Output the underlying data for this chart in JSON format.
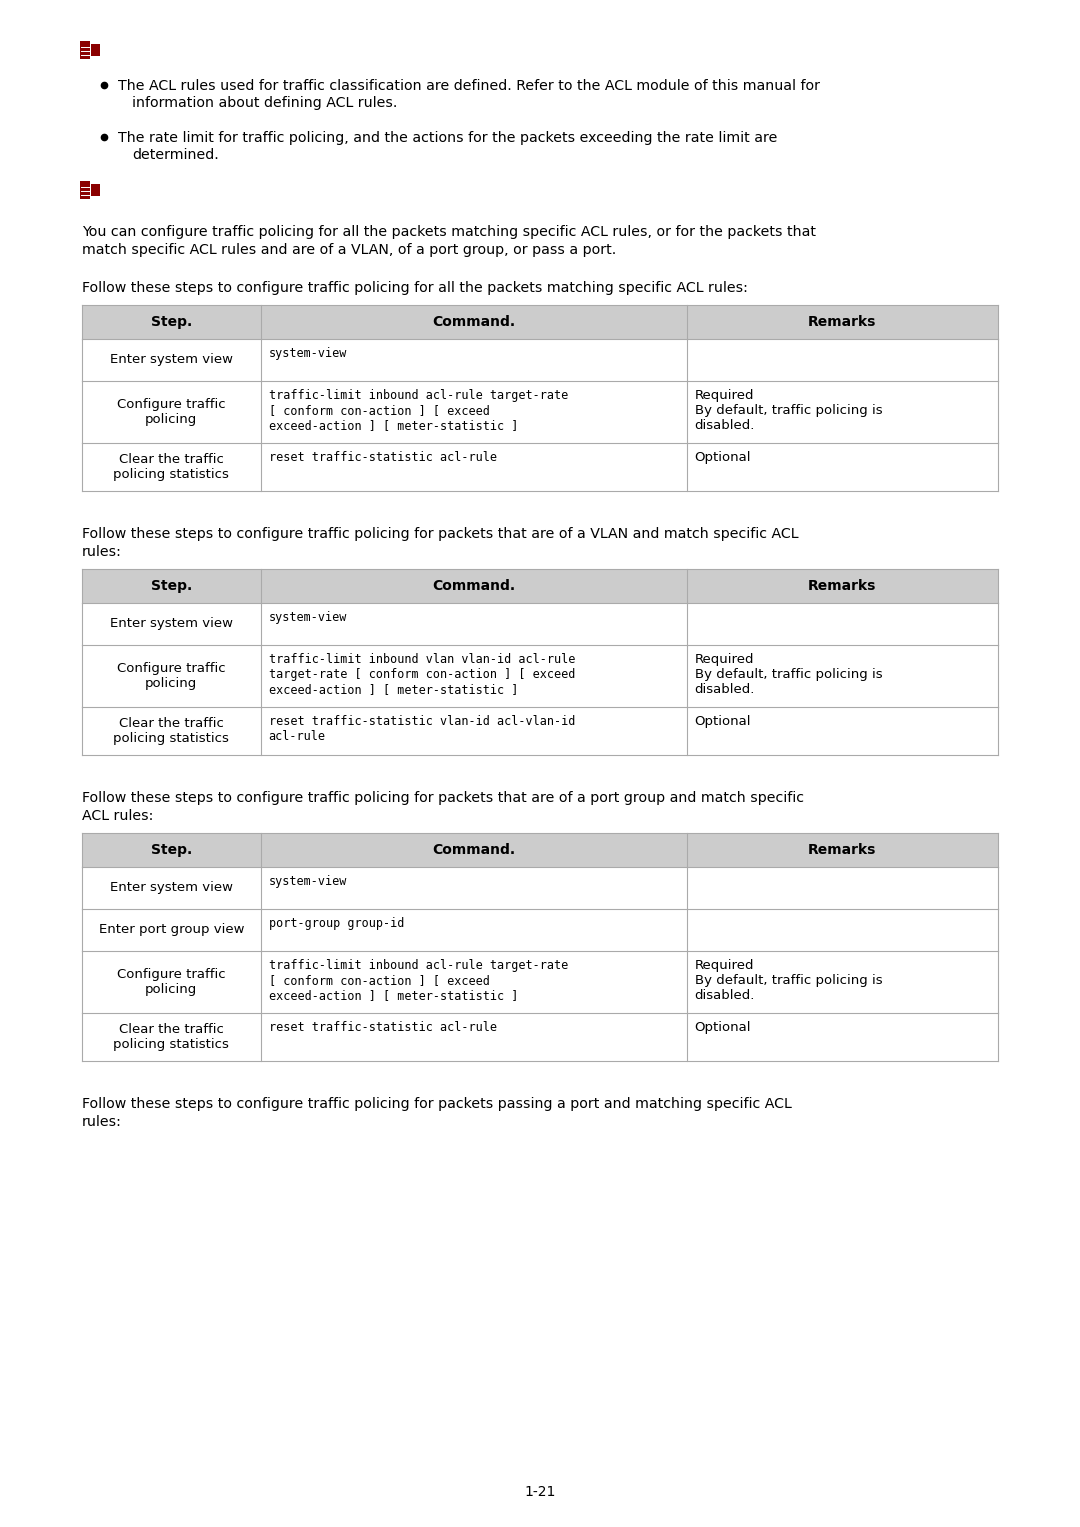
{
  "bg_color": "#ffffff",
  "text_color": "#000000",
  "header_bg": "#cccccc",
  "icon_color": "#8b0000",
  "page_number": "1-21",
  "bullet1_line1": "The ACL rules used for traffic classification are defined. Refer to the ACL module of this manual for",
  "bullet1_line2": "information about defining ACL rules.",
  "bullet2_line1": "The rate limit for traffic policing, and the actions for the packets exceeding the rate limit are",
  "bullet2_line2": "determined.",
  "para2_line1": "You can configure traffic policing for all the packets matching specific ACL rules, or for the packets that",
  "para2_line2": "match specific ACL rules and are of a VLAN, of a port group, or pass a port.",
  "table1_title": "Follow these steps to configure traffic policing for all the packets matching specific ACL rules:",
  "table1_headers": [
    "Step.",
    "Command.",
    "Remarks"
  ],
  "table1_rows": [
    [
      "Enter system view",
      "system-view",
      ""
    ],
    [
      "Configure traffic\npolicing",
      "traffic-limit inbound acl-rule target-rate\n[ conform con-action ] [ exceed\nexceed-action ] [ meter-statistic ]",
      "Required\nBy default, traffic policing is\ndisabled."
    ],
    [
      "Clear the traffic\npolicing statistics",
      "reset traffic-statistic acl-rule",
      "Optional"
    ]
  ],
  "table2_title_line1": "Follow these steps to configure traffic policing for packets that are of a VLAN and match specific ACL",
  "table2_title_line2": "rules:",
  "table2_headers": [
    "Step.",
    "Command.",
    "Remarks"
  ],
  "table2_rows": [
    [
      "Enter system view",
      "system-view",
      ""
    ],
    [
      "Configure traffic\npolicing",
      "traffic-limit inbound vlan vlan-id acl-rule\ntarget-rate [ conform con-action ] [ exceed\nexceed-action ] [ meter-statistic ]",
      "Required\nBy default, traffic policing is\ndisabled."
    ],
    [
      "Clear the traffic\npolicing statistics",
      "reset traffic-statistic vlan-id acl-vlan-id\nacl-rule",
      "Optional"
    ]
  ],
  "table3_title_line1": "Follow these steps to configure traffic policing for packets that are of a port group and match specific",
  "table3_title_line2": "ACL rules:",
  "table3_headers": [
    "Step.",
    "Command.",
    "Remarks"
  ],
  "table3_rows": [
    [
      "Enter system view",
      "system-view",
      ""
    ],
    [
      "Enter port group view",
      "port-group group-id",
      ""
    ],
    [
      "Configure traffic\npolicing",
      "traffic-limit inbound acl-rule target-rate\n[ conform con-action ] [ exceed\nexceed-action ] [ meter-statistic ]",
      "Required\nBy default, traffic policing is\ndisabled."
    ],
    [
      "Clear the traffic\npolicing statistics",
      "reset traffic-statistic acl-rule",
      "Optional"
    ]
  ],
  "table4_title_line1": "Follow these steps to configure traffic policing for packets passing a port and matching specific ACL",
  "table4_title_line2": "rules:"
}
